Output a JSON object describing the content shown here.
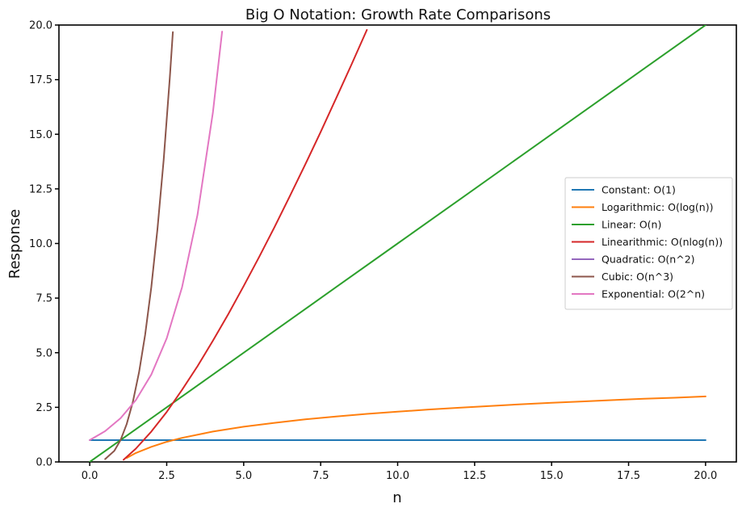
{
  "chart_data": {
    "type": "line",
    "title": "Big O Notation: Growth Rate Comparisons",
    "xlabel": "n",
    "ylabel": "Response",
    "xlim": [
      -1,
      21
    ],
    "ylim": [
      0,
      20
    ],
    "xticks": [
      0.0,
      2.5,
      5.0,
      7.5,
      10.0,
      12.5,
      15.0,
      17.5,
      20.0
    ],
    "xtick_labels": [
      "0.0",
      "2.5",
      "5.0",
      "7.5",
      "10.0",
      "12.5",
      "15.0",
      "17.5",
      "20.0"
    ],
    "yticks": [
      0.0,
      2.5,
      5.0,
      7.5,
      10.0,
      12.5,
      15.0,
      17.5,
      20.0
    ],
    "ytick_labels": [
      "0.0",
      "2.5",
      "5.0",
      "7.5",
      "10.0",
      "12.5",
      "15.0",
      "17.5",
      "20.0"
    ],
    "grid": false,
    "legend_position": "center-right",
    "series": [
      {
        "name": "Constant: O(1)",
        "color": "#1f77b4",
        "x": [
          0,
          1,
          2,
          3,
          4,
          5,
          6,
          7,
          8,
          9,
          10,
          11,
          12,
          13,
          14,
          15,
          16,
          17,
          18,
          19,
          20
        ],
        "y": [
          1,
          1,
          1,
          1,
          1,
          1,
          1,
          1,
          1,
          1,
          1,
          1,
          1,
          1,
          1,
          1,
          1,
          1,
          1,
          1,
          1
        ]
      },
      {
        "name": "Logarithmic: O(log(n))",
        "color": "#ff7f0e",
        "x": [
          1.2,
          1.5,
          2,
          2.5,
          3,
          4,
          5,
          6,
          7,
          8,
          9,
          10,
          11,
          12,
          13,
          14,
          15,
          16,
          17,
          18,
          19,
          20
        ],
        "y": [
          0.18,
          0.41,
          0.69,
          0.92,
          1.1,
          1.39,
          1.61,
          1.79,
          1.95,
          2.08,
          2.2,
          2.3,
          2.4,
          2.48,
          2.56,
          2.64,
          2.71,
          2.77,
          2.83,
          2.89,
          2.94,
          3.0
        ]
      },
      {
        "name": "Linear: O(n)",
        "color": "#2ca02c",
        "x": [
          0,
          2,
          4,
          6,
          8,
          10,
          12,
          14,
          16,
          18,
          20
        ],
        "y": [
          0,
          2,
          4,
          6,
          8,
          10,
          12,
          14,
          16,
          18,
          20
        ]
      },
      {
        "name": "Linearithmic: O(nlog(n))",
        "color": "#d62728",
        "x": [
          1.1,
          1.5,
          2,
          2.5,
          3,
          3.5,
          4,
          4.5,
          5,
          5.5,
          6,
          6.5,
          7,
          7.5,
          8,
          8.5,
          9
        ],
        "y": [
          0.1,
          0.61,
          1.39,
          2.29,
          3.3,
          4.38,
          5.55,
          6.77,
          8.05,
          9.38,
          10.75,
          12.17,
          13.62,
          15.11,
          16.64,
          18.19,
          19.78
        ]
      },
      {
        "name": "Quadratic: O(n^2)",
        "color": "#9467bd",
        "x": [],
        "y": []
      },
      {
        "name": "Cubic: O(n^3)",
        "color": "#8c564b",
        "x": [
          0.5,
          0.8,
          1.0,
          1.2,
          1.4,
          1.6,
          1.8,
          2.0,
          2.2,
          2.4,
          2.6,
          2.7
        ],
        "y": [
          0.13,
          0.51,
          1.0,
          1.73,
          2.74,
          4.1,
          5.83,
          8.0,
          10.65,
          13.82,
          17.58,
          19.68
        ]
      },
      {
        "name": "Exponential: O(2^n)",
        "color": "#e377c2",
        "x": [
          0,
          0.5,
          1.0,
          1.5,
          2.0,
          2.5,
          3.0,
          3.5,
          4.0,
          4.3
        ],
        "y": [
          1.0,
          1.41,
          2.0,
          2.83,
          4.0,
          5.66,
          8.0,
          11.31,
          16.0,
          19.7
        ]
      }
    ]
  }
}
